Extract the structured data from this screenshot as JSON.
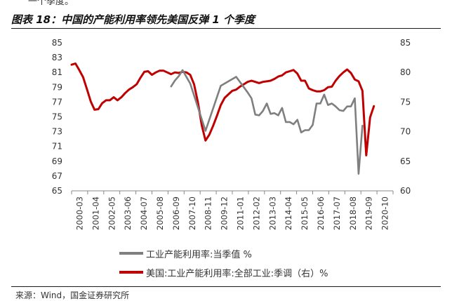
{
  "header": {
    "top_fragment": "一个季度。",
    "figure_title": "图表 18：中国的产能利用率领先美国反弹 1 个季度"
  },
  "source": "来源：Wind，国金证券研究所",
  "colors": {
    "china": "#7f7f7f",
    "us": "#c00000",
    "axis": "#888888"
  },
  "chart_data": {
    "type": "line",
    "title": "",
    "xlabel": "",
    "ylabel": "",
    "x_ticks": [
      "2000-03",
      "2001-04",
      "2002-05",
      "2003-06",
      "2004-07",
      "2005-08",
      "2006-09",
      "2007-10",
      "2008-11",
      "2009-12",
      "2011-01",
      "2012-02",
      "2013-03",
      "2014-04",
      "2015-05",
      "2016-06",
      "2017-07",
      "2018-08",
      "2019-09",
      "2020-10"
    ],
    "x_range": [
      0,
      84
    ],
    "left_axis": {
      "min": 65,
      "max": 85,
      "ticks": [
        65,
        67,
        69,
        71,
        73,
        75,
        77,
        79,
        81,
        83,
        85
      ]
    },
    "right_axis": {
      "min": 60,
      "max": 85,
      "ticks": [
        60,
        65,
        70,
        75,
        80,
        85
      ]
    },
    "legend_position": "bottom",
    "grid": false,
    "series": [
      {
        "name": "工业产能利用率:当季值 %",
        "axis": "left",
        "color": "#7f7f7f",
        "x": [
          26,
          27,
          28,
          29,
          31,
          35,
          39,
          41,
          43,
          45,
          46,
          47,
          48,
          49,
          50,
          51,
          52,
          53,
          54,
          55,
          56,
          57,
          58,
          59,
          60,
          61,
          62,
          63,
          64,
          65,
          66,
          67,
          68,
          69,
          70,
          71,
          72,
          73,
          74,
          75,
          76
        ],
        "y": [
          79.1,
          79.9,
          80.5,
          81.3,
          79.5,
          73.1,
          79.2,
          79.8,
          80.4,
          79.0,
          78.3,
          77.5,
          75.3,
          75.2,
          75.8,
          76.8,
          75.4,
          75.5,
          75.2,
          76.2,
          74.3,
          74.3,
          74.0,
          74.6,
          72.9,
          73.2,
          73.2,
          73.9,
          76.8,
          76.8,
          78.0,
          76.6,
          76.8,
          76.4,
          75.9,
          75.8,
          76.4,
          76.4,
          77.5,
          67.3,
          73.8
        ]
      },
      {
        "name": "美国:工业产能利用率:全部工业:季调（右）%",
        "axis": "right",
        "color": "#c00000",
        "x": [
          0,
          1,
          2,
          3,
          4,
          5,
          6,
          7,
          8,
          9,
          10,
          11,
          12,
          13,
          14,
          15,
          16,
          17,
          18,
          19,
          20,
          21,
          22,
          23,
          24,
          25,
          26,
          27,
          28,
          29,
          30,
          31,
          32,
          33,
          34,
          35,
          36,
          37,
          38,
          39,
          40,
          41,
          42,
          43,
          44,
          45,
          46,
          47,
          48,
          49,
          50,
          51,
          52,
          53,
          54,
          55,
          56,
          57,
          58,
          59,
          60,
          61,
          62,
          63,
          64,
          65,
          66,
          67,
          68,
          69,
          70,
          71,
          72,
          73,
          74,
          75,
          76,
          77,
          78,
          79
        ],
        "y": [
          81.3,
          81.5,
          80.4,
          79.2,
          77.2,
          75.1,
          73.7,
          73.8,
          74.8,
          75.3,
          75.3,
          75.8,
          75.3,
          75.8,
          76.5,
          77.1,
          77.5,
          78.0,
          79.1,
          80.1,
          80.2,
          79.6,
          80.0,
          80.3,
          80.3,
          80.0,
          79.7,
          80.0,
          79.9,
          80.1,
          80.0,
          79.6,
          78.0,
          75.0,
          71.1,
          68.5,
          69.5,
          71.0,
          72.7,
          74.5,
          75.7,
          76.3,
          76.9,
          77.1,
          77.6,
          78.0,
          78.4,
          78.6,
          78.4,
          78.2,
          78.4,
          78.5,
          78.6,
          78.9,
          79.3,
          79.5,
          80.0,
          80.2,
          80.4,
          79.8,
          78.6,
          78.6,
          77.3,
          77.0,
          76.8,
          76.8,
          77.0,
          77.5,
          77.6,
          78.6,
          79.4,
          80.0,
          80.5,
          79.9,
          78.8,
          78.5,
          76.9,
          66.0,
          72.4,
          74.3
        ]
      }
    ]
  }
}
